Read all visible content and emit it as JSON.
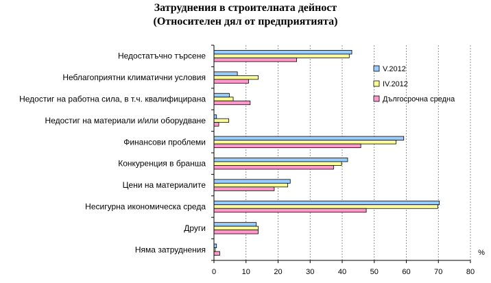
{
  "chart_data": {
    "type": "bar",
    "orientation": "horizontal",
    "title": "Затруднения в строителната дейност",
    "subtitle": "(Относителен дял от предприятията)",
    "unit_label": "%",
    "categories": [
      "Недостатъчно търсене",
      "Неблагоприятни климатични условия",
      "Недостиг на работна сила, в т.ч. квалифицирана",
      "Недостиг на материали и/или оборудване",
      "Финансови проблеми",
      "Конкуренция в бранша",
      "Цени на материалите",
      "Несигурна икономическа среда",
      "Други",
      "Няма затруднения"
    ],
    "series": [
      {
        "name": "V.2012",
        "color": "#99ccff",
        "values": [
          43,
          7.3,
          4.8,
          0.8,
          59.2,
          41.7,
          23.8,
          70.3,
          13.2,
          0.8
        ]
      },
      {
        "name": "IV.2012",
        "color": "#ffff99",
        "values": [
          42.2,
          13.8,
          6,
          4.6,
          56.8,
          39.8,
          23,
          69.8,
          13.8,
          0.4
        ]
      },
      {
        "name": "Дългосрочна средна",
        "color": "#ff99cc",
        "values": [
          25.8,
          10.8,
          11.3,
          1.5,
          45.8,
          37.3,
          18.8,
          47.5,
          13.8,
          1.8
        ]
      }
    ],
    "xlim": [
      0,
      80
    ],
    "xticks": [
      0,
      10,
      20,
      30,
      40,
      50,
      60,
      70,
      80
    ],
    "grid": "vertical-dashed",
    "legend_position": "right"
  }
}
